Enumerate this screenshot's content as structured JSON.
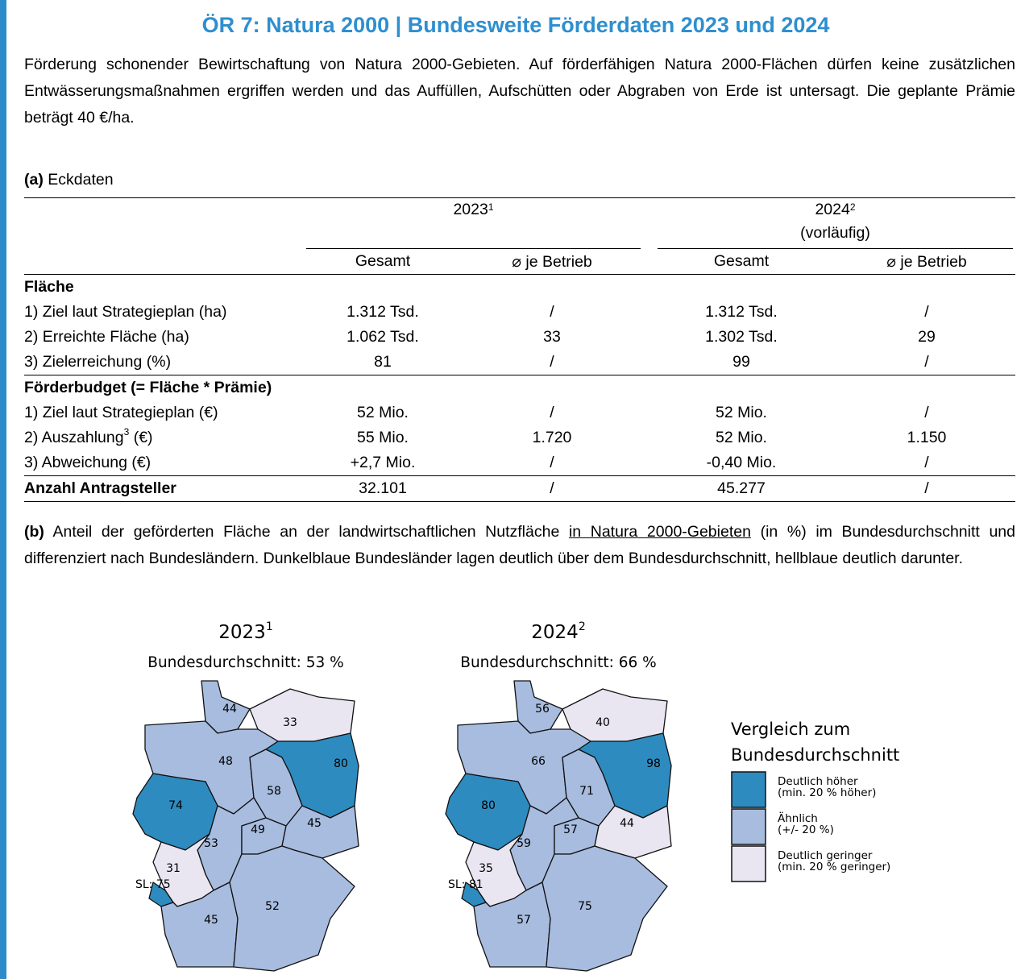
{
  "header": {
    "title": "ÖR 7: Natura 2000 | Bundesweite Förderdaten 2023 und 2024"
  },
  "intro": "Förderung schonender Bewirtschaftung von Natura 2000-Gebieten. Auf förderfähigen Natura 2000-Flächen dürfen keine zusätzlichen Entwässerungsmaßnahmen ergriffen werden und das Auffüllen, Aufschütten oder Abgraben von Erde ist untersagt. Die geplante Prämie beträgt 40 €/ha.",
  "section_a": {
    "label": "(a)",
    "title": " Eckdaten"
  },
  "table": {
    "groups": [
      {
        "year": "2023",
        "note": "1"
      },
      {
        "year": "2024",
        "note": "2",
        "sub": "(vorläufig)"
      }
    ],
    "columns": [
      "Gesamt",
      "⌀ je Betrieb",
      "Gesamt",
      "⌀ je Betrieb"
    ],
    "rows": [
      [
        "Fläche"
      ],
      [
        "1) Ziel laut Strategieplan (ha)",
        "1.312 Tsd.",
        "/",
        "1.312 Tsd.",
        "/"
      ],
      [
        "2) Erreichte Fläche (ha)",
        "1.062 Tsd.",
        "33",
        "1.302 Tsd.",
        "29"
      ],
      [
        "3) Zielerreichung (%)",
        "81",
        "/",
        "99",
        "/"
      ],
      [
        "Förderbudget (= Fläche * Prämie)"
      ],
      [
        "1) Ziel laut Strategieplan (€)",
        "52 Mio.",
        "/",
        "52 Mio.",
        "/"
      ],
      [
        {
          "text": "2) Auszahlung",
          "sup": "3",
          "after": " (€)"
        },
        "55 Mio.",
        "1.720",
        "52 Mio.",
        "1.150"
      ],
      [
        "3) Abweichung (€)",
        "+2,7 Mio.",
        "/",
        "-0,40 Mio.",
        "/"
      ],
      [
        {
          "bold": "Anzahl Antragsteller"
        },
        "32.101",
        "/",
        "45.277",
        "/"
      ]
    ]
  },
  "section_b": {
    "label": "(b)",
    "parts": [
      " Anteil der geförderten Fläche an der landwirtschaftlichen Nutzfläche ",
      "in Natura 2000-Gebieten",
      " (in %) im Bundesdurchschnitt und differenziert nach Bundesländern. Dunkelblaue Bundesländer lagen deutlich über dem Bundesdurchschnitt, hellblaue deutlich darunter."
    ]
  },
  "maps": [
    {
      "year": "2023",
      "note": "1",
      "subtitle": "Bundesdurchschnitt: 53 %",
      "states": [
        {
          "value": 44,
          "color": "#a7bcdf"
        },
        {
          "value": 33,
          "color": "#e9e6f2"
        },
        {
          "value": 48,
          "color": "#a7bcdf"
        },
        {
          "value": 80,
          "color": "#2e8bbf"
        },
        {
          "value": 58,
          "color": "#a7bcdf"
        },
        {
          "value": 74,
          "color": "#2e8bbf"
        },
        {
          "value": 53,
          "color": "#a7bcdf"
        },
        {
          "value": 49,
          "color": "#a7bcdf"
        },
        {
          "value": 45,
          "color": "#a7bcdf"
        },
        {
          "value": 31,
          "color": "#e9e6f2"
        },
        {
          "label": "SL: 75",
          "color": "#2e8bbf"
        },
        {
          "value": 45,
          "color": "#a7bcdf"
        },
        {
          "value": 52,
          "color": "#a7bcdf"
        }
      ]
    },
    {
      "year": "2024",
      "note": "2",
      "subtitle": "Bundesdurchschnitt: 66 %",
      "states": [
        {
          "value": 56,
          "color": "#a7bcdf"
        },
        {
          "value": 40,
          "color": "#e9e6f2"
        },
        {
          "value": 66,
          "color": "#a7bcdf"
        },
        {
          "value": 98,
          "color": "#2e8bbf"
        },
        {
          "value": 71,
          "color": "#a7bcdf"
        },
        {
          "value": 80,
          "color": "#2e8bbf"
        },
        {
          "value": 59,
          "color": "#a7bcdf"
        },
        {
          "value": 57,
          "color": "#a7bcdf"
        },
        {
          "value": 44,
          "color": "#e9e6f2"
        },
        {
          "value": 35,
          "color": "#e9e6f2"
        },
        {
          "label": "SL: 81",
          "color": "#2e8bbf"
        },
        {
          "value": 57,
          "color": "#a7bcdf"
        },
        {
          "value": 75,
          "color": "#a7bcdf"
        }
      ]
    }
  ],
  "legend": {
    "title": [
      "Vergleich zum",
      "Bundesdurchschnitt"
    ],
    "items": [
      {
        "color": "#2e8bbf",
        "lines": [
          "Deutlich höher",
          "(min. 20 % höher)"
        ]
      },
      {
        "color": "#a7bcdf",
        "lines": [
          "Ähnlich",
          "(+/- 20 %)"
        ]
      },
      {
        "color": "#e9e6f2",
        "lines": [
          "Deutlich geringer",
          "(min. 20 % geringer)"
        ]
      }
    ]
  }
}
